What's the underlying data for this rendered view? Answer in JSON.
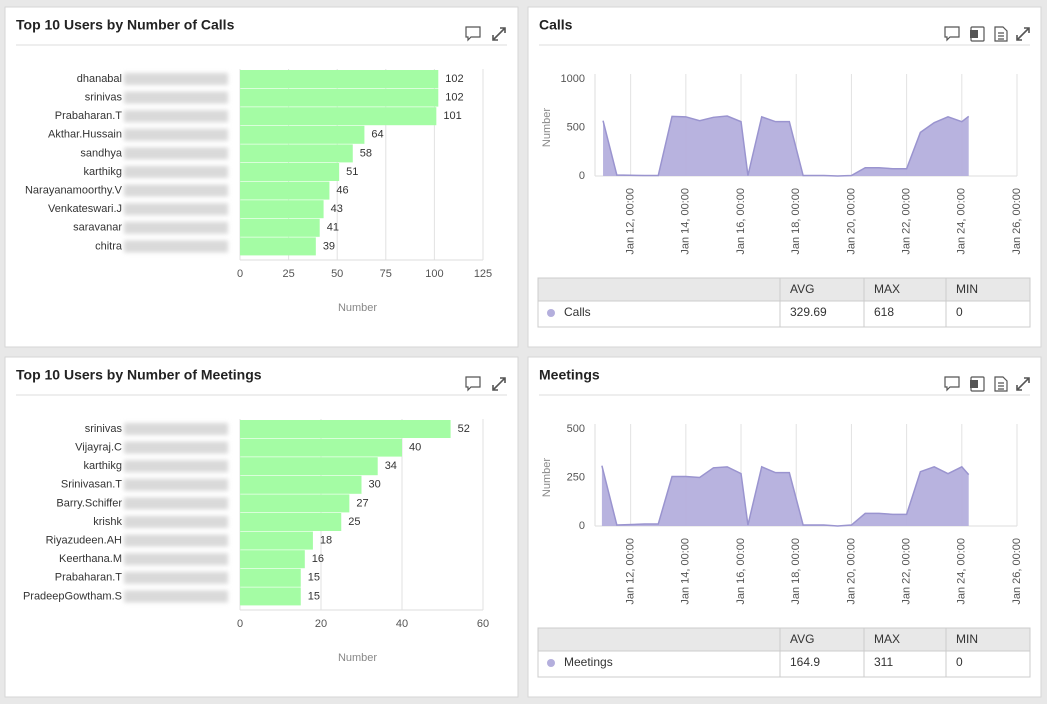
{
  "chart_data": [
    {
      "type": "hbar",
      "title": "Top 10 Users by Number of Calls",
      "categories": [
        "dhanabal",
        "srinivas",
        "Prabaharan.T",
        "Akthar.Hussain",
        "sandhya",
        "karthikg",
        "Narayanamoorthy.V",
        "Venkateswari.J",
        "saravanar",
        "chitra"
      ],
      "values": [
        102,
        102,
        101,
        64,
        58,
        51,
        46,
        43,
        41,
        39
      ],
      "color": "#a4fca4",
      "xlim": [
        0,
        125
      ],
      "xticks": [
        0,
        25,
        50,
        75,
        100,
        125
      ],
      "xlabel": "Number",
      "grid": true
    },
    {
      "type": "area",
      "title": "Calls",
      "x": [
        "Jan 11, 00:00",
        "Jan 11, 12:00",
        "Jan 12, 12:00",
        "Jan 13, 00:00",
        "Jan 13, 12:00",
        "Jan 14, 00:00",
        "Jan 14, 12:00",
        "Jan 15, 00:00",
        "Jan 15, 12:00",
        "Jan 16, 00:00",
        "Jan 16, 06:00",
        "Jan 16, 18:00",
        "Jan 17, 06:00",
        "Jan 17, 18:00",
        "Jan 18, 06:00",
        "Jan 19, 00:00",
        "Jan 19, 12:00",
        "Jan 20, 00:00",
        "Jan 20, 12:00",
        "Jan 21, 00:00",
        "Jan 21, 12:00",
        "Jan 22, 00:00",
        "Jan 22, 12:00",
        "Jan 23, 00:00",
        "Jan 23, 12:00",
        "Jan 24, 00:00",
        "Jan 24, 06:00"
      ],
      "series": [
        {
          "name": "Calls",
          "color": "#b4afdd",
          "values": [
            570,
            10,
            5,
            5,
            615,
            610,
            570,
            605,
            618,
            560,
            5,
            610,
            560,
            560,
            5,
            5,
            0,
            5,
            85,
            85,
            75,
            75,
            450,
            550,
            610,
            560,
            615
          ]
        }
      ],
      "xlim": [
        "Jan 10, 17:00",
        "Jan 26, 00:00"
      ],
      "xticks": [
        "Jan 12, 00:00",
        "Jan 14, 00:00",
        "Jan 16, 00:00",
        "Jan 18, 00:00",
        "Jan 20, 00:00",
        "Jan 22, 00:00",
        "Jan 24, 00:00",
        "Jan 26, 00:00"
      ],
      "ylim": [
        0,
        1000
      ],
      "yticks": [
        0,
        500,
        1000
      ],
      "ylabel": "Number",
      "grid": true,
      "stats": {
        "columns": [
          "AVG",
          "MAX",
          "MIN"
        ],
        "values": [
          329.69,
          618,
          0
        ]
      }
    },
    {
      "type": "hbar",
      "title": "Top 10 Users by Number of Meetings",
      "categories": [
        "srinivas",
        "Vijayraj.C",
        "karthikg",
        "Srinivasan.T",
        "Barry.Schiffer",
        "krishk",
        "Riyazudeen.AH",
        "Keerthana.M",
        "Prabaharan.T",
        "PradeepGowtham.S"
      ],
      "values": [
        52,
        40,
        34,
        30,
        27,
        25,
        18,
        16,
        15,
        15
      ],
      "color": "#a4fca4",
      "xlim": [
        0,
        60
      ],
      "xticks": [
        0,
        20,
        40,
        60
      ],
      "xlabel": "Number",
      "grid": true
    },
    {
      "type": "area",
      "title": "Meetings",
      "x": [
        "Jan 10, 23:00",
        "Jan 11, 12:00",
        "Jan 12, 12:00",
        "Jan 13, 00:00",
        "Jan 13, 12:00",
        "Jan 14, 00:00",
        "Jan 14, 12:00",
        "Jan 15, 00:00",
        "Jan 15, 12:00",
        "Jan 16, 00:00",
        "Jan 16, 06:00",
        "Jan 16, 18:00",
        "Jan 17, 06:00",
        "Jan 17, 18:00",
        "Jan 18, 06:00",
        "Jan 19, 00:00",
        "Jan 19, 12:00",
        "Jan 20, 00:00",
        "Jan 20, 12:00",
        "Jan 21, 00:00",
        "Jan 21, 12:00",
        "Jan 22, 00:00",
        "Jan 22, 12:00",
        "Jan 23, 00:00",
        "Jan 23, 12:00",
        "Jan 24, 00:00",
        "Jan 24, 06:00"
      ],
      "series": [
        {
          "name": "Meetings",
          "color": "#b4afdd",
          "values": [
            311,
            5,
            10,
            10,
            255,
            255,
            250,
            300,
            305,
            270,
            5,
            305,
            275,
            275,
            5,
            5,
            0,
            5,
            65,
            65,
            60,
            60,
            280,
            305,
            270,
            305,
            265
          ]
        }
      ],
      "xlim": [
        "Jan 10, 17:00",
        "Jan 26, 00:00"
      ],
      "xticks": [
        "Jan 12, 00:00",
        "Jan 14, 00:00",
        "Jan 16, 00:00",
        "Jan 18, 00:00",
        "Jan 20, 00:00",
        "Jan 22, 00:00",
        "Jan 24, 00:00",
        "Jan 26, 00:00"
      ],
      "ylim": [
        0,
        500
      ],
      "yticks": [
        0,
        250,
        500
      ],
      "ylabel": "Number",
      "grid": true,
      "stats": {
        "columns": [
          "AVG",
          "MAX",
          "MIN"
        ],
        "values": [
          164.9,
          311,
          0
        ]
      }
    }
  ]
}
